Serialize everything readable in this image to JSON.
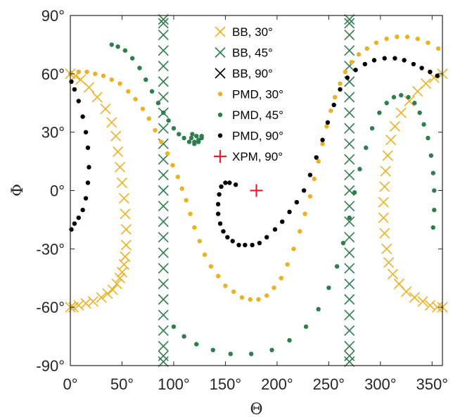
{
  "chart_data": {
    "type": "scatter",
    "title": "",
    "xlabel": "Θ",
    "ylabel": "Φ",
    "xlim": [
      0,
      360
    ],
    "ylim": [
      -90,
      90
    ],
    "xticks": [
      0,
      50,
      100,
      150,
      200,
      250,
      300,
      350
    ],
    "xtick_labels": [
      "0°",
      "50°",
      "100°",
      "150°",
      "200°",
      "250°",
      "300°",
      "350°"
    ],
    "yticks": [
      -90,
      -60,
      -30,
      0,
      30,
      60,
      90
    ],
    "ytick_labels": [
      "-90°",
      "-60°",
      "-30°",
      "0°",
      "30°",
      "60°",
      "90°"
    ],
    "grid": false,
    "legend_position": "top-center",
    "colors": {
      "orange": "#EDB120",
      "green": "#2E7D4F",
      "black": "#000000",
      "red": "#E8202A",
      "axis": "#262626"
    },
    "series": [
      {
        "name": "BB, 30°",
        "marker": "x",
        "color": "#EDB120",
        "segments": [
          {
            "x": [
              0,
              5,
              10,
              18,
              26,
              34,
              40,
              44,
              46,
              48,
              50,
              52,
              53,
              54,
              54,
              53,
              52,
              50,
              48,
              45,
              41,
              36,
              30,
              22,
              15,
              8,
              3,
              0
            ],
            "y": [
              60,
              59,
              57,
              53,
              48,
              42,
              35,
              28,
              20,
              12,
              4,
              -4,
              -12,
              -20,
              -28,
              -34,
              -38,
              -42,
              -45,
              -48,
              -51,
              -53,
              -55,
              -57,
              -58,
              -59,
              -60,
              -60
            ]
          },
          {
            "x": [
              360,
              352,
              344,
              336,
              328,
              320,
              314,
              310,
              307,
              305,
              304,
              303,
              303,
              304,
              306,
              308,
              312,
              318,
              325,
              333,
              341,
              348,
              355,
              360
            ],
            "y": [
              60,
              58,
              55,
              51,
              46,
              40,
              33,
              26,
              18,
              10,
              2,
              -6,
              -14,
              -22,
              -30,
              -37,
              -43,
              -48,
              -52,
              -55,
              -57,
              -59,
              -60,
              -60
            ]
          }
        ]
      },
      {
        "name": "BB, 45°",
        "marker": "x",
        "color": "#2E7D4F",
        "segments": [
          {
            "x": [
              90,
              90,
              90,
              90,
              90,
              90,
              90,
              90,
              90,
              90,
              90,
              90,
              90,
              90,
              90,
              90,
              90,
              90,
              90,
              90,
              90,
              90,
              90,
              90,
              90
            ],
            "y": [
              -88,
              -80,
              -72,
              -64,
              -56,
              -48,
              -40,
              -32,
              -24,
              -16,
              -8,
              0,
              8,
              16,
              24,
              32,
              40,
              48,
              56,
              64,
              72,
              80,
              88,
              -85,
              86
            ]
          },
          {
            "x": [
              270,
              270,
              270,
              270,
              270,
              270,
              270,
              270,
              270,
              270,
              270,
              270,
              270,
              270,
              270,
              270,
              270,
              270,
              270,
              270,
              270,
              270,
              270,
              270,
              270
            ],
            "y": [
              -88,
              -80,
              -72,
              -64,
              -56,
              -48,
              -40,
              -32,
              -24,
              -16,
              -8,
              0,
              8,
              16,
              24,
              32,
              40,
              48,
              56,
              64,
              72,
              80,
              88,
              -85,
              86
            ]
          }
        ]
      },
      {
        "name": "BB, 90°",
        "marker": "x",
        "color": "#000000",
        "segments": []
      },
      {
        "name": "PMD, 30°",
        "marker": "dot",
        "color": "#EDB120",
        "segments": [
          {
            "x": [
              0,
              8,
              16,
              24,
              32,
              40,
              48,
              56,
              63,
              70,
              76,
              82,
              88,
              94,
              99,
              104,
              108,
              112,
              116,
              120,
              125,
              130,
              136,
              143,
              150,
              158,
              166,
              174,
              182,
              190,
              197,
              204,
              210,
              216,
              222,
              227,
              232,
              236,
              240,
              244,
              248,
              252,
              256,
              261,
              266,
              272,
              279,
              287,
              296,
              306,
              316,
              326,
              336,
              346,
              356
            ],
            "y": [
              60,
              61,
              61,
              60,
              59,
              57,
              55,
              51,
              47,
              42,
              37,
              31,
              25,
              19,
              13,
              7,
              1,
              -5,
              -12,
              -19,
              -26,
              -33,
              -39,
              -44,
              -49,
              -52,
              -55,
              -56,
              -56,
              -54,
              -50,
              -45,
              -38,
              -30,
              -21,
              -12,
              -3,
              6,
              15,
              24,
              33,
              41,
              48,
              55,
              61,
              66,
              70,
              73,
              76,
              78,
              79,
              79,
              78,
              76,
              73
            ]
          }
        ]
      },
      {
        "name": "PMD, 45°",
        "marker": "dot",
        "color": "#2E7D4F",
        "segments": [
          {
            "x": [
              40,
              46,
              53,
              60,
              67,
              73,
              79,
              85,
              90,
              95,
              100,
              105,
              110,
              115,
              120,
              124,
              127,
              127,
              124,
              120,
              117,
              118,
              122
            ],
            "y": [
              75,
              74,
              72,
              68,
              63,
              57,
              51,
              45,
              40,
              36,
              32,
              29,
              27,
              25,
              25,
              26,
              28,
              27,
              25,
              24,
              27,
              29,
              28
            ]
          },
          {
            "x": [
              100,
              110,
              122,
              138,
              155,
              175,
              195,
              212,
              228,
              240,
              250,
              258,
              264,
              270,
              275,
              280,
              286,
              292,
              299,
              306,
              313,
              320,
              327,
              333,
              338,
              342,
              346,
              349,
              351,
              352,
              352,
              351
            ],
            "y": [
              -70,
              -75,
              -79,
              -82,
              -84,
              -84,
              -82,
              -77,
              -70,
              -61,
              -50,
              -39,
              -27,
              -14,
              -1,
              11,
              22,
              32,
              40,
              45,
              48,
              49,
              48,
              45,
              40,
              34,
              27,
              18,
              9,
              0,
              -10,
              -19
            ]
          }
        ]
      },
      {
        "name": "PMD, 90°",
        "marker": "dot",
        "color": "#000000",
        "segments": [
          {
            "x": [
              1,
              4,
              8,
              12,
              15,
              17,
              18,
              17,
              15,
              12,
              8,
              4,
              1
            ],
            "y": [
              56,
              52,
              46,
              38,
              30,
              22,
              12,
              4,
              -4,
              -10,
              -14,
              -17,
              -20
            ]
          },
          {
            "x": [
              160,
              154,
              150,
              146,
              144,
              143,
              143,
              145,
              148,
              152,
              157,
              163,
              169,
              176,
              183,
              190,
              198,
              205,
              212,
              219,
              226,
              232,
              238,
              244,
              249,
              255,
              261,
              268,
              276,
              285,
              294,
              304,
              314,
              323,
              332,
              340,
              348,
              355
            ],
            "y": [
              3,
              4,
              4,
              2,
              -2,
              -7,
              -12,
              -17,
              -21,
              -24,
              -26,
              -28,
              -28,
              -28,
              -27,
              -24,
              -20,
              -16,
              -11,
              -6,
              0,
              8,
              17,
              26,
              35,
              44,
              52,
              58,
              62,
              65,
              67,
              68,
              68,
              67,
              65,
              63,
              61,
              59
            ]
          }
        ]
      },
      {
        "name": "XPM, 90°",
        "marker": "plus",
        "color": "#E8202A",
        "segments": [
          {
            "x": [
              180
            ],
            "y": [
              0
            ]
          }
        ]
      }
    ]
  }
}
